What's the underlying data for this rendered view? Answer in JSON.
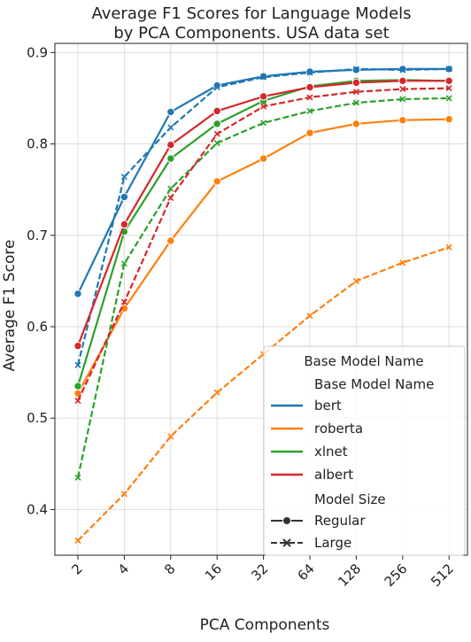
{
  "chart_data": {
    "type": "line",
    "title_lines": [
      "Average F1 Scores for Language Models",
      "by PCA Components. USA data set"
    ],
    "xlabel": "PCA Components",
    "ylabel": "Average F1 Score",
    "categories": [
      "2",
      "4",
      "8",
      "16",
      "32",
      "64",
      "128",
      "256",
      "512"
    ],
    "ylim": [
      0.35,
      0.91
    ],
    "yticks": [
      0.4,
      0.5,
      0.6,
      0.7,
      0.8,
      0.9
    ],
    "ytick_labels": [
      "0.4",
      "0.5",
      "0.6",
      "0.7",
      "0.8",
      "0.9"
    ],
    "grid": true,
    "legend": {
      "placement": "bottom-right",
      "title": "Base Model Name",
      "heading_hue": "Base Model Name",
      "heading_style": "Model Size",
      "style_entries": [
        "Regular",
        "Large"
      ]
    },
    "series": [
      {
        "name": "bert",
        "size": "Regular",
        "color": "#1f77b4",
        "values": [
          0.636,
          0.742,
          0.835,
          0.864,
          0.874,
          0.879,
          0.881,
          0.882,
          0.882
        ]
      },
      {
        "name": "bert",
        "size": "Large",
        "color": "#1f77b4",
        "values": [
          0.558,
          0.764,
          0.818,
          0.862,
          0.873,
          0.878,
          0.882,
          0.881,
          0.882
        ]
      },
      {
        "name": "roberta",
        "size": "Regular",
        "color": "#ff7f0e",
        "values": [
          0.527,
          0.62,
          0.694,
          0.759,
          0.784,
          0.812,
          0.822,
          0.826,
          0.827
        ]
      },
      {
        "name": "roberta",
        "size": "Large",
        "color": "#ff7f0e",
        "values": [
          0.366,
          0.417,
          0.48,
          0.528,
          0.57,
          0.612,
          0.65,
          0.67,
          0.687
        ]
      },
      {
        "name": "xlnet",
        "size": "Regular",
        "color": "#2ca02c",
        "values": [
          0.535,
          0.704,
          0.784,
          0.822,
          0.847,
          0.863,
          0.869,
          0.87,
          0.869
        ]
      },
      {
        "name": "xlnet",
        "size": "Large",
        "color": "#2ca02c",
        "values": [
          0.435,
          0.669,
          0.751,
          0.801,
          0.823,
          0.836,
          0.845,
          0.849,
          0.85
        ]
      },
      {
        "name": "albert",
        "size": "Regular",
        "color": "#d62728",
        "values": [
          0.579,
          0.712,
          0.799,
          0.836,
          0.852,
          0.862,
          0.867,
          0.869,
          0.869
        ]
      },
      {
        "name": "albert",
        "size": "Large",
        "color": "#d62728",
        "values": [
          0.519,
          0.627,
          0.741,
          0.811,
          0.841,
          0.851,
          0.857,
          0.86,
          0.861
        ]
      }
    ]
  }
}
